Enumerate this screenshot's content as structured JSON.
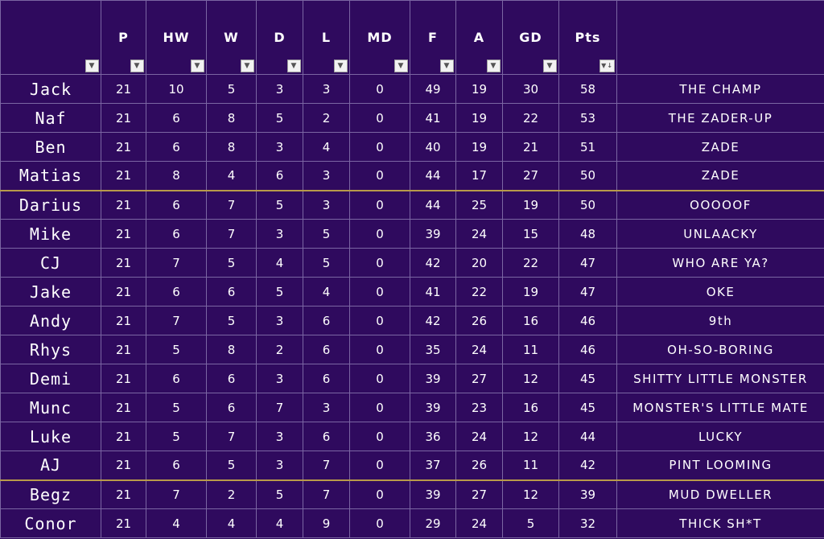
{
  "columns": {
    "p": "P",
    "hw": "HW",
    "w": "W",
    "d": "D",
    "l": "L",
    "md": "MD",
    "f": "F",
    "a": "A",
    "gd": "GD",
    "pts": "Pts"
  },
  "filter_icon": "▼",
  "sort_desc_icon": "▼↓",
  "rows": [
    {
      "name": "Jack",
      "p": "21",
      "hw": "10",
      "w": "5",
      "d": "3",
      "l": "3",
      "md": "0",
      "f": "49",
      "a": "19",
      "gd": "30",
      "pts": "58",
      "nick": "THE CHAMP"
    },
    {
      "name": "Naf",
      "p": "21",
      "hw": "6",
      "w": "8",
      "d": "5",
      "l": "2",
      "md": "0",
      "f": "41",
      "a": "19",
      "gd": "22",
      "pts": "53",
      "nick": "THE ZADER-UP"
    },
    {
      "name": "Ben",
      "p": "21",
      "hw": "6",
      "w": "8",
      "d": "3",
      "l": "4",
      "md": "0",
      "f": "40",
      "a": "19",
      "gd": "21",
      "pts": "51",
      "nick": "ZADE"
    },
    {
      "name": "Matias",
      "p": "21",
      "hw": "8",
      "w": "4",
      "d": "6",
      "l": "3",
      "md": "0",
      "f": "44",
      "a": "17",
      "gd": "27",
      "pts": "50",
      "nick": "ZADE"
    },
    {
      "name": "Darius",
      "p": "21",
      "hw": "6",
      "w": "7",
      "d": "5",
      "l": "3",
      "md": "0",
      "f": "44",
      "a": "25",
      "gd": "19",
      "pts": "50",
      "nick": "OOOOOF"
    },
    {
      "name": "Mike",
      "p": "21",
      "hw": "6",
      "w": "7",
      "d": "3",
      "l": "5",
      "md": "0",
      "f": "39",
      "a": "24",
      "gd": "15",
      "pts": "48",
      "nick": "UNLAACKY"
    },
    {
      "name": "CJ",
      "p": "21",
      "hw": "7",
      "w": "5",
      "d": "4",
      "l": "5",
      "md": "0",
      "f": "42",
      "a": "20",
      "gd": "22",
      "pts": "47",
      "nick": "WHO ARE YA?"
    },
    {
      "name": "Jake",
      "p": "21",
      "hw": "6",
      "w": "6",
      "d": "5",
      "l": "4",
      "md": "0",
      "f": "41",
      "a": "22",
      "gd": "19",
      "pts": "47",
      "nick": "OKE"
    },
    {
      "name": "Andy",
      "p": "21",
      "hw": "7",
      "w": "5",
      "d": "3",
      "l": "6",
      "md": "0",
      "f": "42",
      "a": "26",
      "gd": "16",
      "pts": "46",
      "nick": "9th"
    },
    {
      "name": "Rhys",
      "p": "21",
      "hw": "5",
      "w": "8",
      "d": "2",
      "l": "6",
      "md": "0",
      "f": "35",
      "a": "24",
      "gd": "11",
      "pts": "46",
      "nick": "OH-SO-BORING"
    },
    {
      "name": "Demi",
      "p": "21",
      "hw": "6",
      "w": "6",
      "d": "3",
      "l": "6",
      "md": "0",
      "f": "39",
      "a": "27",
      "gd": "12",
      "pts": "45",
      "nick": "SHITTY LITTLE MONSTER"
    },
    {
      "name": "Munc",
      "p": "21",
      "hw": "5",
      "w": "6",
      "d": "7",
      "l": "3",
      "md": "0",
      "f": "39",
      "a": "23",
      "gd": "16",
      "pts": "45",
      "nick": "MONSTER'S LITTLE MATE"
    },
    {
      "name": "Luke",
      "p": "21",
      "hw": "5",
      "w": "7",
      "d": "3",
      "l": "6",
      "md": "0",
      "f": "36",
      "a": "24",
      "gd": "12",
      "pts": "44",
      "nick": "LUCKY"
    },
    {
      "name": "AJ",
      "p": "21",
      "hw": "6",
      "w": "5",
      "d": "3",
      "l": "7",
      "md": "0",
      "f": "37",
      "a": "26",
      "gd": "11",
      "pts": "42",
      "nick": "PINT LOOMING"
    },
    {
      "name": "Begz",
      "p": "21",
      "hw": "7",
      "w": "2",
      "d": "5",
      "l": "7",
      "md": "0",
      "f": "39",
      "a": "27",
      "gd": "12",
      "pts": "39",
      "nick": "MUD DWELLER"
    },
    {
      "name": "Conor",
      "p": "21",
      "hw": "4",
      "w": "4",
      "d": "4",
      "l": "9",
      "md": "0",
      "f": "29",
      "a": "24",
      "gd": "5",
      "pts": "32",
      "nick": "THICK SH*T"
    }
  ],
  "colors": {
    "background": "#2f0a5e",
    "gridline": "#7b66a3",
    "zone_separator": "#b89a4a",
    "text": "#ffffff"
  }
}
